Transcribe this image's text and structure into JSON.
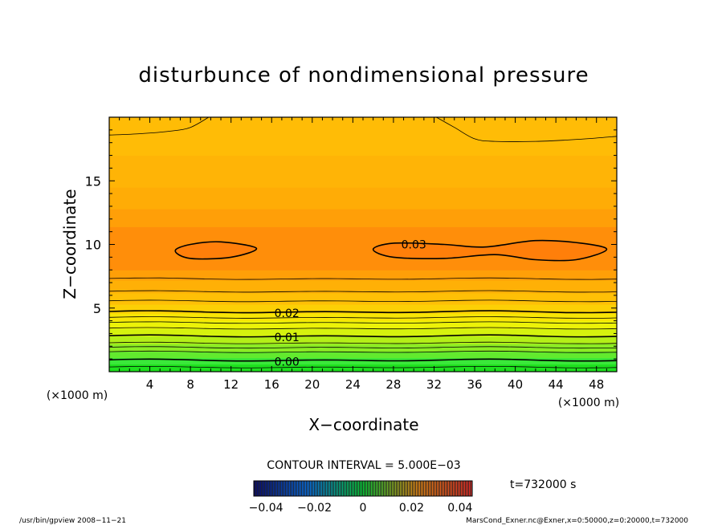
{
  "chart_data": {
    "type": "heatmap",
    "title": "disturbunce of nondimensional pressure",
    "xlabel": "X−coordinate",
    "ylabel": "Z−coordinate",
    "x_unit": "(×1000 m)",
    "y_unit": "(×1000 m)",
    "xlim": [
      0,
      50
    ],
    "ylim": [
      0,
      20
    ],
    "xticks": [
      4,
      8,
      12,
      16,
      20,
      24,
      28,
      32,
      36,
      40,
      44,
      48
    ],
    "yticks": [
      5,
      10,
      15
    ],
    "contour_interval_text": "CONTOUR INTERVAL = 5.000E−03",
    "contour_labels": [
      {
        "text": "0.03",
        "x": 30,
        "z": 10.0
      },
      {
        "text": "0.02",
        "x": 17.5,
        "z": 4.6
      },
      {
        "text": "0.01",
        "x": 17.5,
        "z": 2.7
      },
      {
        "text": "0.00",
        "x": 17.5,
        "z": 0.8
      }
    ],
    "colorbar": {
      "min": -0.045,
      "max": 0.045,
      "ticks": [
        "−0.04",
        "−0.02",
        "0",
        "0.02",
        "0.04"
      ],
      "tick_values": [
        -0.04,
        -0.02,
        0,
        0.02,
        0.04
      ]
    },
    "time_label": "t=732000 s",
    "grid": false
  },
  "footer": {
    "left": "/usr/bin/gpview   2008−11−21",
    "right": "MarsCond_Exner.nc@Exner,x=0:50000,z=0:20000,t=732000"
  }
}
